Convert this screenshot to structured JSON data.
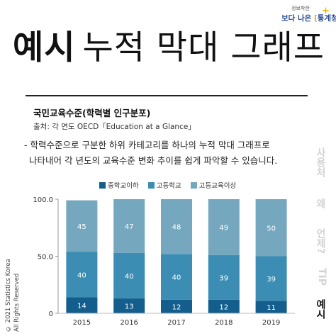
{
  "logo": {
    "tagline": "정보착한",
    "name_part1": "보다 나은 ",
    "name_part2": "통계청"
  },
  "header": {
    "title_bold": "예시",
    "title_rest": "누적 막대 그래프"
  },
  "chart_info": {
    "subtitle": "국민교육수준(학력별 인구분포)",
    "source": "출처: 각 연도 OECD「Education at a Glance」"
  },
  "description": {
    "line1": "- 학력수준으로 구분한 하위 카테고리를 하나의 누적 막대 그래프로",
    "line2": "나타내어 각 년도의 교육수준 변화 추이를 쉽게 파악할 수 있습니다."
  },
  "side_nav": {
    "items": [
      "사용처",
      "왜",
      "언제?",
      "TIP",
      "예시"
    ],
    "active_index": 4
  },
  "copyright": {
    "line1": "© 2021 Statistics Korea",
    "line2": "All Rights Reserved"
  },
  "colors": {
    "bottom": "#135e8c",
    "middle": "#3c8db4",
    "top": "#75a8bf"
  },
  "chart_data": {
    "type": "bar",
    "stacked": true,
    "categories": [
      "2015",
      "2016",
      "2017",
      "2018",
      "2019"
    ],
    "series": [
      {
        "name": "중학교이하",
        "values": [
          14,
          13,
          12,
          12,
          11
        ]
      },
      {
        "name": "고등학교",
        "values": [
          40,
          40,
          40,
          39,
          39
        ]
      },
      {
        "name": "고등교육이상",
        "values": [
          45,
          47,
          48,
          49,
          50
        ]
      }
    ],
    "y_ticks": [
      "0",
      "50.0",
      "100.0"
    ],
    "ylim": [
      0,
      100
    ],
    "legend_position": "top",
    "grid": false
  }
}
